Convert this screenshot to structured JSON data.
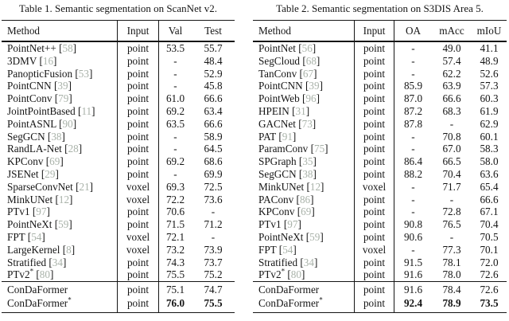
{
  "colors": {
    "background": "#ffffff",
    "text": "#151515",
    "rule": "#151515",
    "citation": "#a9b2a9"
  },
  "tables": [
    {
      "caption": "Table 1. Semantic segmentation on ScanNet v2.",
      "columns": [
        "Method",
        "Input",
        "Val",
        "Test"
      ],
      "rows": [
        {
          "method": "PointNet++",
          "cite": "58",
          "input": "point",
          "values": [
            "53.5",
            "55.7"
          ]
        },
        {
          "method": "3DMV",
          "cite": "16",
          "input": "point",
          "values": [
            "-",
            "48.4"
          ]
        },
        {
          "method": "PanopticFusion",
          "cite": "53",
          "input": "point",
          "values": [
            "-",
            "52.9"
          ]
        },
        {
          "method": "PointCNN",
          "cite": "39",
          "input": "point",
          "values": [
            "-",
            "45.8"
          ]
        },
        {
          "method": "PointConv",
          "cite": "79",
          "input": "point",
          "values": [
            "61.0",
            "66.6"
          ]
        },
        {
          "method": "JointPointBased",
          "cite": "11",
          "input": "point",
          "values": [
            "69.2",
            "63.4"
          ]
        },
        {
          "method": "PointASNL",
          "cite": "90",
          "input": "point",
          "values": [
            "63.5",
            "66.6"
          ]
        },
        {
          "method": "SegGCN",
          "cite": "38",
          "input": "point",
          "values": [
            "-",
            "58.9"
          ]
        },
        {
          "method": "RandLA-Net",
          "cite": "28",
          "input": "point",
          "values": [
            "-",
            "64.5"
          ]
        },
        {
          "method": "KPConv",
          "cite": "69",
          "input": "point",
          "values": [
            "69.2",
            "68.6"
          ]
        },
        {
          "method": "JSENet",
          "cite": "29",
          "input": "point",
          "values": [
            "-",
            "69.9"
          ]
        },
        {
          "method": "SparseConvNet",
          "cite": "21",
          "input": "voxel",
          "values": [
            "69.3",
            "72.5"
          ]
        },
        {
          "method": "MinkUNet",
          "cite": "12",
          "input": "voxel",
          "values": [
            "72.2",
            "73.6"
          ]
        },
        {
          "method": "PTv1",
          "cite": "97",
          "input": "point",
          "values": [
            "70.6",
            "-"
          ]
        },
        {
          "method": "PointNeXt",
          "cite": "59",
          "input": "point",
          "values": [
            "71.5",
            "71.2"
          ]
        },
        {
          "method": "FPT",
          "cite": "54",
          "input": "voxel",
          "values": [
            "72.1",
            "-"
          ]
        },
        {
          "method": "LargeKernel",
          "cite": "8",
          "input": "voxel",
          "values": [
            "73.2",
            "73.9"
          ]
        },
        {
          "method": "Stratified",
          "cite": "34",
          "input": "point",
          "values": [
            "74.3",
            "73.7"
          ]
        },
        {
          "method": "PTv2*",
          "cite": "80",
          "input": "point",
          "values": [
            "75.5",
            "75.2"
          ]
        }
      ],
      "final_rows": [
        {
          "method": "ConDaFormer",
          "cite": "",
          "input": "point",
          "values": [
            "75.1",
            "74.7"
          ],
          "bold": false
        },
        {
          "method": "ConDaFormer*",
          "cite": "",
          "input": "point",
          "values": [
            "76.0",
            "75.5"
          ],
          "bold": true
        }
      ]
    },
    {
      "caption": "Table 2. Semantic segmentation on S3DIS Area 5.",
      "columns": [
        "Method",
        "Input",
        "OA",
        "mAcc",
        "mIoU"
      ],
      "rows": [
        {
          "method": "PointNet",
          "cite": "56",
          "input": "point",
          "values": [
            "-",
            "49.0",
            "41.1"
          ]
        },
        {
          "method": "SegCloud",
          "cite": "68",
          "input": "point",
          "values": [
            "-",
            "57.4",
            "48.9"
          ]
        },
        {
          "method": "TanConv",
          "cite": "67",
          "input": "point",
          "values": [
            "-",
            "62.2",
            "52.6"
          ]
        },
        {
          "method": "PointCNN",
          "cite": "39",
          "input": "point",
          "values": [
            "85.9",
            "63.9",
            "57.3"
          ]
        },
        {
          "method": "PointWeb",
          "cite": "96",
          "input": "point",
          "values": [
            "87.0",
            "66.6",
            "60.3"
          ]
        },
        {
          "method": "HPEIN",
          "cite": "31",
          "input": "point",
          "values": [
            "87.2",
            "68.3",
            "61.9"
          ]
        },
        {
          "method": "GACNet",
          "cite": "73",
          "input": "point",
          "values": [
            "87.8",
            "-",
            "62.9"
          ]
        },
        {
          "method": "PAT",
          "cite": "91",
          "input": "point",
          "values": [
            "-",
            "70.8",
            "60.1"
          ]
        },
        {
          "method": "ParamConv",
          "cite": "75",
          "input": "point",
          "values": [
            "-",
            "67.0",
            "58.3"
          ]
        },
        {
          "method": "SPGraph",
          "cite": "35",
          "input": "point",
          "values": [
            "86.4",
            "66.5",
            "58.0"
          ]
        },
        {
          "method": "SegGCN",
          "cite": "38",
          "input": "point",
          "values": [
            "88.2",
            "70.4",
            "63.6"
          ]
        },
        {
          "method": "MinkUNet",
          "cite": "12",
          "input": "voxel",
          "values": [
            "-",
            "71.7",
            "65.4"
          ]
        },
        {
          "method": "PAConv",
          "cite": "86",
          "input": "point",
          "values": [
            "-",
            "-",
            "66.6"
          ]
        },
        {
          "method": "KPConv",
          "cite": "69",
          "input": "point",
          "values": [
            "-",
            "72.8",
            "67.1"
          ]
        },
        {
          "method": "PTv1",
          "cite": "97",
          "input": "point",
          "values": [
            "90.8",
            "76.5",
            "70.4"
          ]
        },
        {
          "method": "PointNeXt",
          "cite": "59",
          "input": "point",
          "values": [
            "90.6",
            "-",
            "70.5"
          ]
        },
        {
          "method": "FPT",
          "cite": "54",
          "input": "voxel",
          "values": [
            "-",
            "77.3",
            "70.1"
          ]
        },
        {
          "method": "Stratified",
          "cite": "34",
          "input": "point",
          "values": [
            "91.5",
            "78.1",
            "72.0"
          ]
        },
        {
          "method": "PTv2*",
          "cite": "80",
          "input": "point",
          "values": [
            "91.6",
            "78.0",
            "72.6"
          ]
        }
      ],
      "final_rows": [
        {
          "method": "ConDaFormer",
          "cite": "",
          "input": "point",
          "values": [
            "91.6",
            "78.4",
            "72.6"
          ],
          "bold": false
        },
        {
          "method": "ConDaFormer*",
          "cite": "",
          "input": "point",
          "values": [
            "92.4",
            "78.9",
            "73.5"
          ],
          "bold": true
        }
      ]
    }
  ]
}
